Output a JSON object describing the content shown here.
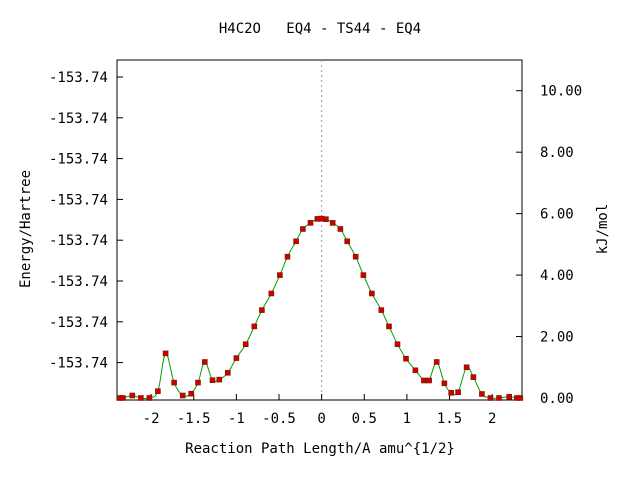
{
  "chart_data": {
    "type": "line",
    "title": "H4C2O   EQ4 - TS44 - EQ4",
    "xlabel": "Reaction Path Length/A amu^{1/2}",
    "ylabel_left": "Energy/Hartree",
    "ylabel_right": "kJ/mol",
    "xlim": [
      -2.4,
      2.35
    ],
    "xticks": [
      -2,
      -1.5,
      -1,
      -0.5,
      0,
      0.5,
      1,
      1.5,
      2
    ],
    "xtick_labels": [
      "-2",
      "-1.5",
      "-1",
      "-0.5",
      "0",
      "0.5",
      "1",
      "1.5",
      "2"
    ],
    "left_tick_labels": [
      "-153.74",
      "-153.74",
      "-153.74",
      "-153.74",
      "-153.74",
      "-153.74",
      "-153.74",
      "-153.74"
    ],
    "right_ylim": [
      0,
      11
    ],
    "right_ticks": [
      0,
      2,
      4,
      6,
      8,
      10
    ],
    "right_tick_labels": [
      "0.00",
      "2.00",
      "4.00",
      "6.00",
      "8.00",
      "10.00"
    ],
    "ts_marker_x": 0,
    "line_color": "#00a000",
    "marker_color": "#cc0000",
    "guide_color": "#999999",
    "series": [
      {
        "x": [
          -2.37,
          -2.33,
          -2.22,
          -2.12,
          -2.02,
          -1.92,
          -1.83,
          -1.73,
          -1.63,
          -1.53,
          -1.45,
          -1.37,
          -1.28,
          -1.2,
          -1.1,
          -1.0,
          -0.89,
          -0.79,
          -0.7,
          -0.59,
          -0.49,
          -0.4,
          -0.3,
          -0.22,
          -0.13,
          -0.05,
          0.0,
          0.05,
          0.13,
          0.22,
          0.3,
          0.4,
          0.49,
          0.59,
          0.7,
          0.79,
          0.89,
          0.99,
          1.1,
          1.2,
          1.26,
          1.35,
          1.44,
          1.52,
          1.6,
          1.7,
          1.78,
          1.88,
          1.98,
          2.08,
          2.2,
          2.29,
          2.33
        ],
        "y": [
          0.0,
          0.0,
          0.08,
          0.0,
          0.0,
          0.22,
          1.45,
          0.5,
          0.08,
          0.14,
          0.5,
          1.17,
          0.58,
          0.6,
          0.82,
          1.3,
          1.75,
          2.33,
          2.86,
          3.4,
          4.0,
          4.6,
          5.1,
          5.5,
          5.7,
          5.83,
          5.84,
          5.82,
          5.7,
          5.5,
          5.1,
          4.6,
          4.0,
          3.4,
          2.86,
          2.33,
          1.75,
          1.28,
          0.9,
          0.57,
          0.57,
          1.17,
          0.48,
          0.17,
          0.19,
          1.0,
          0.68,
          0.13,
          0.0,
          0.0,
          0.04,
          0.0,
          0.0
        ]
      }
    ]
  }
}
